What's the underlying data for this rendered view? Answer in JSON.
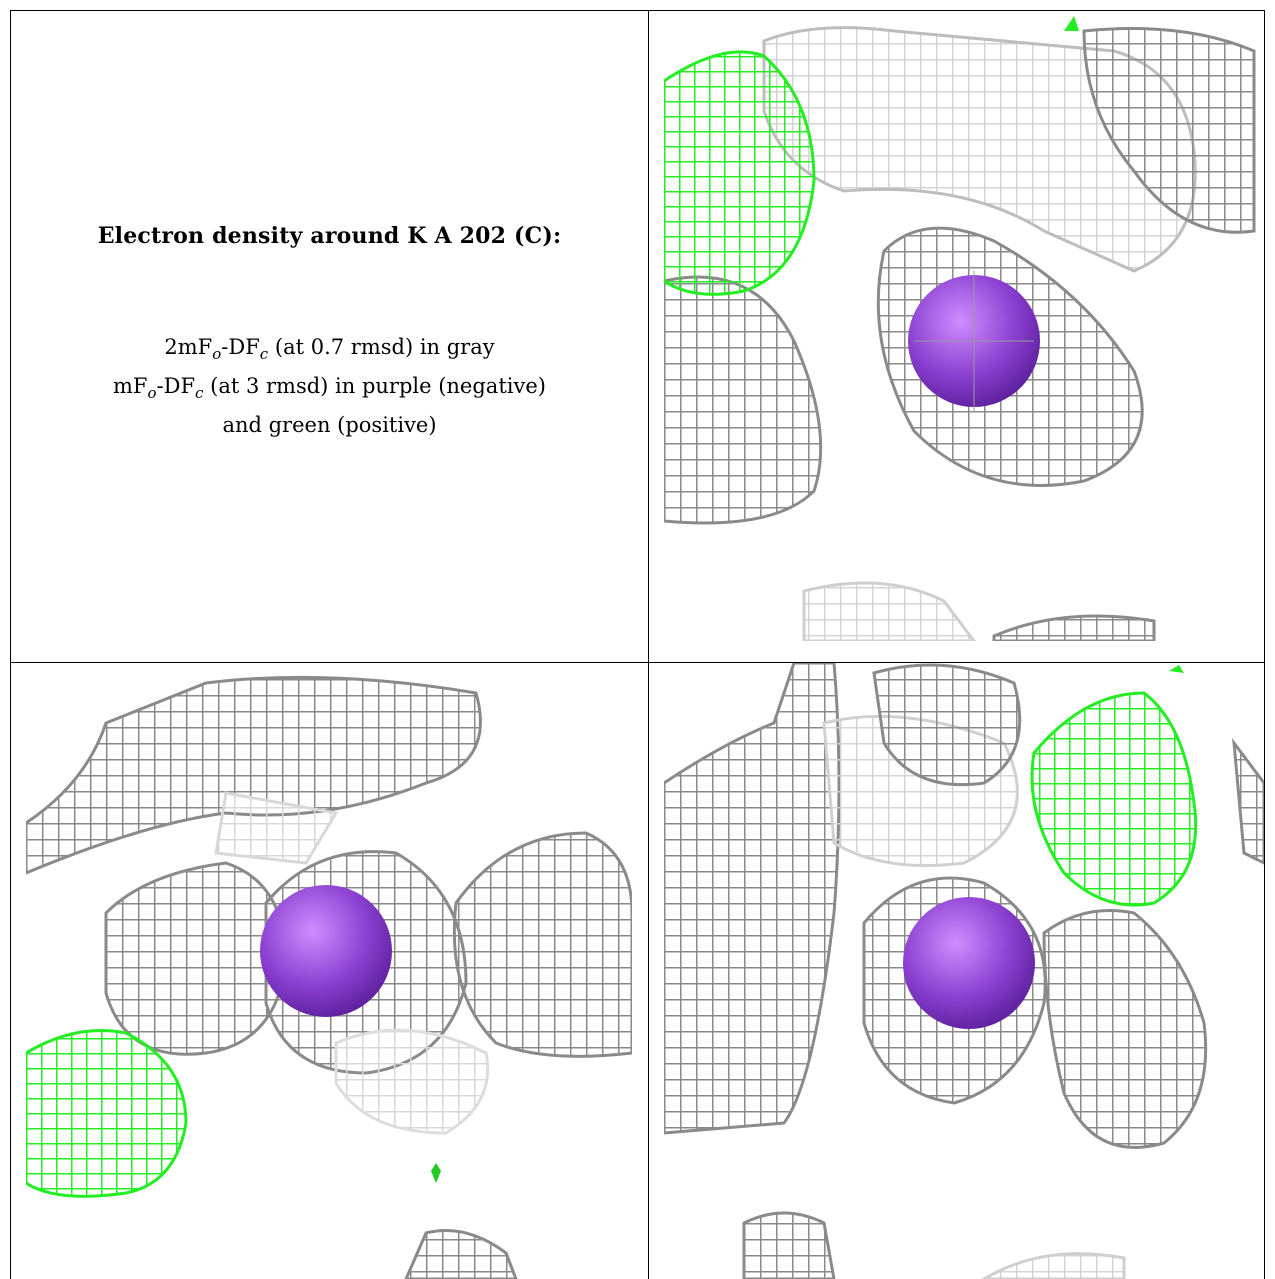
{
  "figure": {
    "title": "Electron density around K A 202 (C):",
    "line1": {
      "a": "2mF",
      "sub1": "o",
      "b": "-DF",
      "sub2": "c",
      "c": " (at 0.7 rmsd) in gray"
    },
    "line2": {
      "a": "mF",
      "sub1": "o",
      "b": "-DF",
      "sub2": "c",
      "c": " (at 3 rmsd) in purple (negative)"
    },
    "line3": "and green (positive)"
  },
  "colors": {
    "gray_mesh": "#8a8a8a",
    "light_mesh": "#d0d0d0",
    "green_mesh": "#22ee22",
    "purple_atom": "#8a3fd0"
  },
  "panels": [
    {
      "name": "view-1",
      "icon": "density-map-icon"
    },
    {
      "name": "view-2",
      "icon": "density-map-icon"
    },
    {
      "name": "view-3",
      "icon": "density-map-icon"
    }
  ]
}
